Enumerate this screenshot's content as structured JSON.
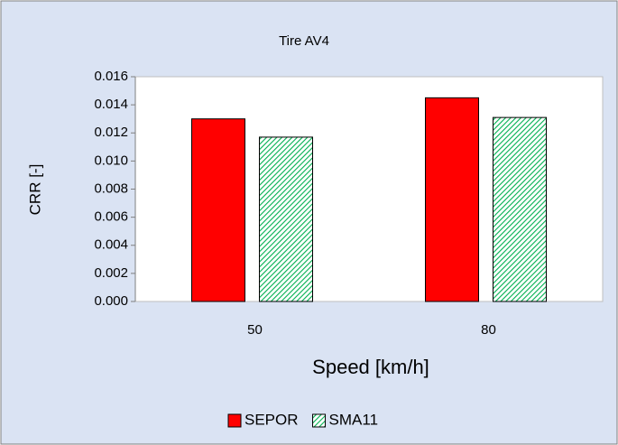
{
  "chart_data": {
    "type": "bar",
    "title": "Tire AV4",
    "x_label": "Speed [km/h]",
    "y_label": "CRR [-]",
    "categories": [
      "50",
      "80"
    ],
    "series": [
      {
        "name": "SEPOR",
        "color": "#ff0000",
        "values": [
          0.013,
          0.0145
        ]
      },
      {
        "name": "SMA11",
        "color": "#00b050",
        "pattern": "diagonal-hatch",
        "values": [
          0.0117,
          0.0131
        ]
      }
    ],
    "ylim": [
      0,
      0.016
    ],
    "yticks": [
      {
        "value": 0,
        "label": "0.000"
      },
      {
        "value": 0.002,
        "label": "0.002"
      },
      {
        "value": 0.004,
        "label": "0.004"
      },
      {
        "value": 0.006,
        "label": "0.006"
      },
      {
        "value": 0.008,
        "label": "0.008"
      },
      {
        "value": 0.01,
        "label": "0.010"
      },
      {
        "value": 0.012,
        "label": "0.012"
      },
      {
        "value": 0.014,
        "label": "0.014"
      },
      {
        "value": 0.016,
        "label": "0.016"
      }
    ],
    "grid": false,
    "legend": "bottom"
  }
}
